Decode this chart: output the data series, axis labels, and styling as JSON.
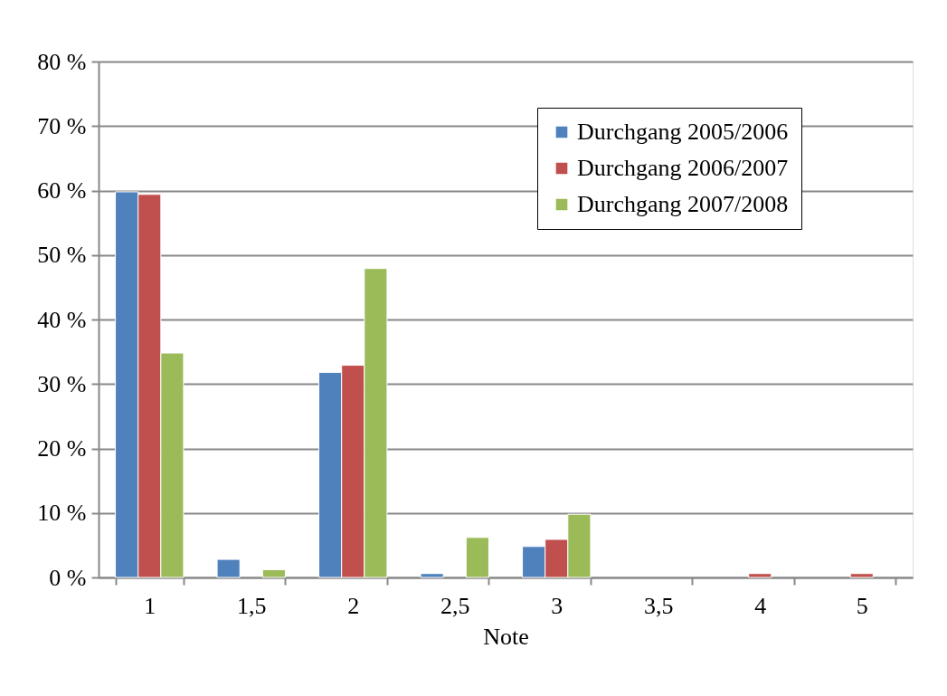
{
  "chart_data": {
    "type": "bar",
    "xlabel": "Note",
    "categories": [
      "1",
      "1,5",
      "2",
      "2,5",
      "3",
      "3,5",
      "4",
      "5"
    ],
    "series": [
      {
        "name": "Durchgang 2005/2006",
        "color": "#4f81bd",
        "values": [
          59.8,
          2.8,
          31.8,
          0.6,
          4.8,
          null,
          null,
          null
        ]
      },
      {
        "name": "Durchgang 2006/2007",
        "color": "#c0504d",
        "values": [
          59.4,
          null,
          32.9,
          null,
          5.9,
          null,
          0.6,
          0.6
        ]
      },
      {
        "name": "Durchgang 2007/2008",
        "color": "#9bbb59",
        "values": [
          34.8,
          1.2,
          47.9,
          6.2,
          9.8,
          null,
          null,
          null
        ]
      }
    ],
    "ylim": [
      0,
      80
    ],
    "yticks": [
      {
        "value": 0,
        "label": "0 %"
      },
      {
        "value": 10,
        "label": "10 %"
      },
      {
        "value": 20,
        "label": "20 %"
      },
      {
        "value": 30,
        "label": "30 %"
      },
      {
        "value": 40,
        "label": "40 %"
      },
      {
        "value": 50,
        "label": "50 %"
      },
      {
        "value": 60,
        "label": "60 %"
      },
      {
        "value": 70,
        "label": "70 %"
      },
      {
        "value": 80,
        "label": "80 %"
      }
    ],
    "grid": "y",
    "legend": "top right"
  }
}
